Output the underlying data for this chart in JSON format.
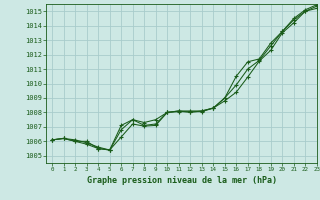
{
  "title": "Graphe pression niveau de la mer (hPa)",
  "bg_color": "#cde8e4",
  "grid_color": "#a8cccc",
  "line_color": "#1a5c1a",
  "xlim": [
    -0.5,
    23
  ],
  "ylim": [
    1004.5,
    1015.5
  ],
  "yticks": [
    1005,
    1006,
    1007,
    1008,
    1009,
    1010,
    1011,
    1012,
    1013,
    1014,
    1015
  ],
  "xticks": [
    0,
    1,
    2,
    3,
    4,
    5,
    6,
    7,
    8,
    9,
    10,
    11,
    12,
    13,
    14,
    15,
    16,
    17,
    18,
    19,
    20,
    21,
    22,
    23
  ],
  "line1_x": [
    0,
    1,
    2,
    3,
    4,
    5,
    6,
    7,
    8,
    9,
    10,
    11,
    12,
    13,
    14,
    15,
    16,
    17,
    18,
    19,
    20,
    21,
    22,
    23
  ],
  "line1_y": [
    1006.1,
    1006.2,
    1006.1,
    1005.9,
    1005.6,
    1005.4,
    1006.3,
    1007.2,
    1007.05,
    1007.1,
    1008.0,
    1008.05,
    1008.05,
    1008.05,
    1008.3,
    1008.8,
    1009.4,
    1010.45,
    1011.55,
    1012.3,
    1013.5,
    1014.2,
    1015.0,
    1015.2
  ],
  "line2_x": [
    0,
    1,
    2,
    3,
    4,
    5,
    6,
    7,
    8,
    9,
    10,
    11,
    12,
    13,
    14,
    15,
    16,
    17,
    18,
    19,
    20,
    21,
    22,
    23
  ],
  "line2_y": [
    1006.1,
    1006.2,
    1006.0,
    1006.0,
    1005.5,
    1005.4,
    1006.8,
    1007.5,
    1007.1,
    1007.2,
    1008.0,
    1008.1,
    1008.1,
    1008.1,
    1008.3,
    1009.0,
    1009.9,
    1011.0,
    1011.6,
    1012.6,
    1013.6,
    1014.4,
    1015.0,
    1015.35
  ],
  "line3_x": [
    0,
    1,
    2,
    3,
    4,
    5,
    6,
    7,
    8,
    9,
    10,
    11,
    12,
    13,
    14,
    15,
    16,
    17,
    18,
    19,
    20,
    21,
    22,
    23
  ],
  "line3_y": [
    1006.1,
    1006.2,
    1006.0,
    1005.8,
    1005.5,
    1005.4,
    1007.1,
    1007.5,
    1007.3,
    1007.5,
    1008.0,
    1008.1,
    1008.0,
    1008.1,
    1008.3,
    1009.0,
    1010.5,
    1011.5,
    1011.7,
    1012.8,
    1013.6,
    1014.5,
    1015.1,
    1015.45
  ]
}
